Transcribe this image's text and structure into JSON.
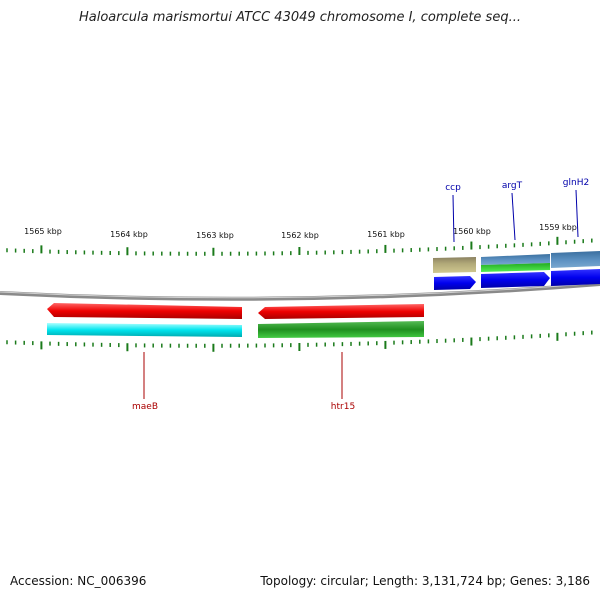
{
  "title": "Haloarcula marismortui ATCC 43049 chromosome I, complete seq...",
  "footer": {
    "accession": "Accession: NC_006396",
    "summary": "Topology: circular; Length: 3,131,724 bp; Genes: 3,186"
  },
  "scale_labels": [
    "1565 kbp",
    "1564 kbp",
    "1563 kbp",
    "1562 kbp",
    "1561 kbp",
    "1560 kbp",
    "1559 kbp"
  ],
  "gene_labels": {
    "ccp": "ccp",
    "argT": "argT",
    "glnH2": "glnH2",
    "maeB": "maeB",
    "htr15": "htr15"
  },
  "colors": {
    "backbone": "#888888",
    "tick": "#1a7a1a",
    "forward_label": "#0000aa",
    "reverse_label": "#aa0000",
    "red_feature": "#ee0000",
    "cyan_feature": "#00e5ee",
    "green_feature": "#229922",
    "olive_feature": "#a8a070",
    "steel_feature": "#4a7fb0",
    "blue_feature": "#0000ee"
  }
}
